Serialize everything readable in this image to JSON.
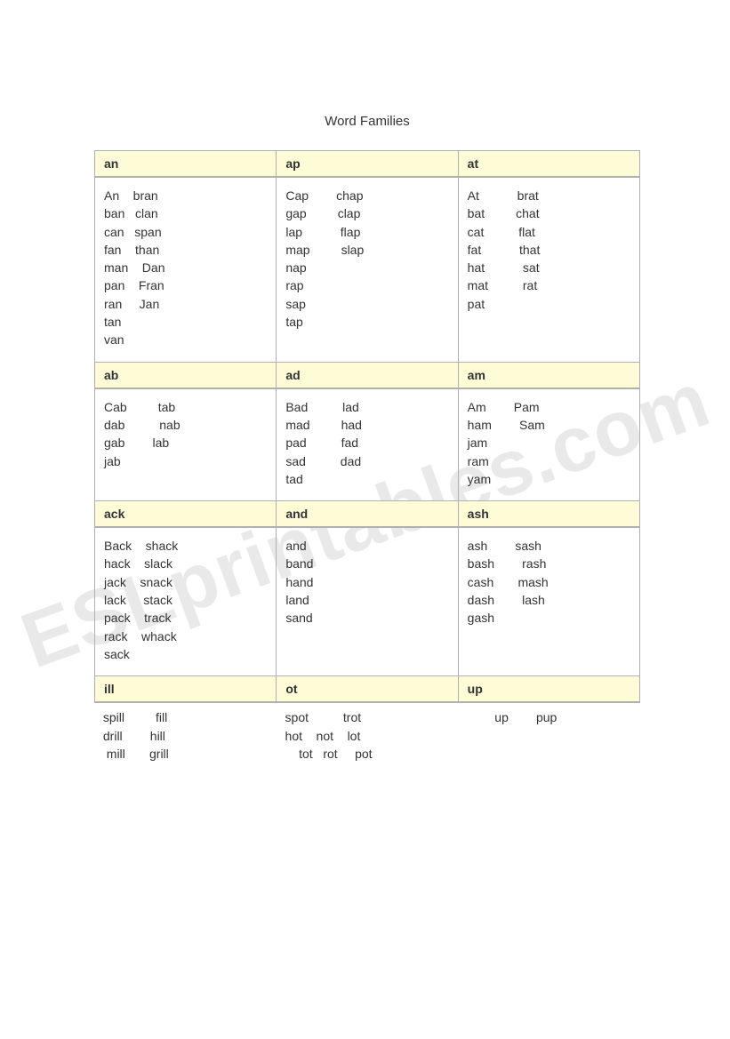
{
  "title": "Word Families",
  "watermark": "ESLprintables.com",
  "rows": [
    {
      "cells": [
        {
          "header": "an",
          "body": "An    bran\nban   clan\ncan   span\nfan    than\nman    Dan\npan    Fran\nran     Jan\ntan\nvan"
        },
        {
          "header": "ap",
          "body": "Cap        chap\ngap         clap\nlap           flap\nmap         slap\nnap\nrap\nsap\ntap"
        },
        {
          "header": "at",
          "body": "At           brat\nbat         chat\ncat          flat\nfat           that\nhat           sat\nmat          rat\npat"
        }
      ]
    },
    {
      "cells": [
        {
          "header": "ab",
          "body": "Cab         tab\ndab          nab\ngab        lab\njab"
        },
        {
          "header": "ad",
          "body": "Bad          lad\nmad         had\npad          fad\nsad          dad\ntad"
        },
        {
          "header": "am",
          "body": "Am        Pam\nham        Sam\njam\nram\nyam"
        }
      ]
    },
    {
      "cells": [
        {
          "header": "ack",
          "body": "Back    shack\nhack    slack\njack    snack\nlack     stack\npack    track\nrack    whack\nsack"
        },
        {
          "header": "and",
          "body": "and\nband\nhand\nland\nsand"
        },
        {
          "header": "ash",
          "body": "ash        sash\nbash        rash\ncash       mash\ndash        lash\ngash"
        }
      ]
    }
  ],
  "bottom": {
    "cells": [
      {
        "header": "ill",
        "body": " spill         fill\n drill        hill\n  mill       grill"
      },
      {
        "header": "ot",
        "body": " spot          trot\n hot    not    lot\n     tot   rot     pot"
      },
      {
        "header": "up",
        "body": "         up        pup"
      }
    ]
  }
}
